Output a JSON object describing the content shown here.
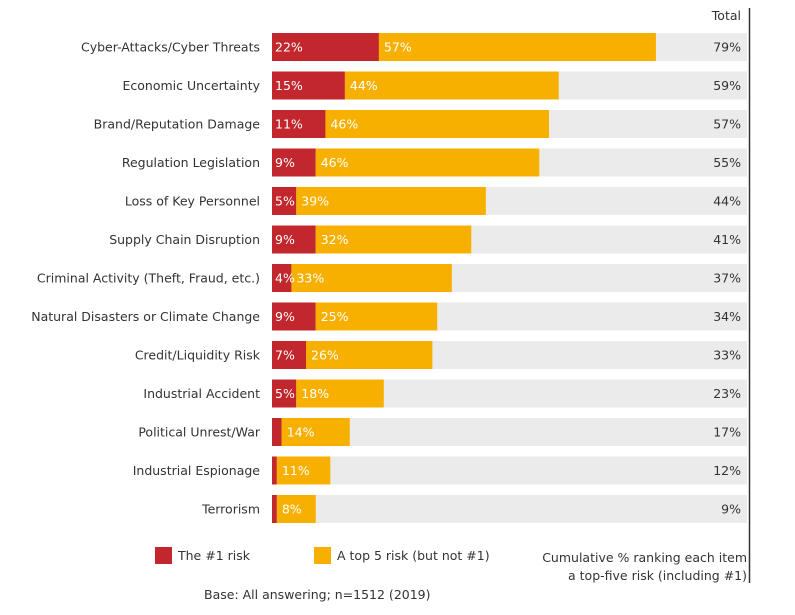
{
  "chart_data": {
    "type": "bar",
    "orientation": "horizontal",
    "stacked": true,
    "categories": [
      "Cyber-Attacks/Cyber Threats",
      "Economic Uncertainty",
      "Brand/Reputation Damage",
      "Regulation Legislation",
      "Loss of Key Personnel",
      "Supply Chain Disruption",
      "Criminal Activity (Theft, Fraud, etc.)",
      "Natural Disasters or Climate Change",
      "Credit/Liquidity Risk",
      "Industrial Accident",
      "Political Unrest/War",
      "Industrial Espionage",
      "Terrorism"
    ],
    "series": [
      {
        "name": "The #1 risk",
        "color": "#C1272D",
        "values": [
          22,
          15,
          11,
          9,
          5,
          9,
          4,
          9,
          7,
          5,
          2,
          1,
          1
        ],
        "labels": [
          "22%",
          "15%",
          "11%",
          "9%",
          "5%",
          "9%",
          "4%",
          "9%",
          "7%",
          "5%",
          "",
          "",
          ""
        ]
      },
      {
        "name": "A top 5 risk (but not  #1)",
        "color": "#F8B000",
        "values": [
          57,
          44,
          46,
          46,
          39,
          32,
          33,
          25,
          26,
          18,
          14,
          11,
          8
        ],
        "labels": [
          "57%",
          "44%",
          "46%",
          "46%",
          "39%",
          "32%",
          "33%",
          "25%",
          "26%",
          "18%",
          "14%",
          "11%",
          "8%"
        ]
      }
    ],
    "totals": [
      "79%",
      "59%",
      "57%",
      "55%",
      "44%",
      "41%",
      "37%",
      "34%",
      "33%",
      "23%",
      "17%",
      "12%",
      "9%"
    ],
    "total_header": "Total",
    "xlim": [
      0,
      100
    ],
    "background_track_color": "#EBEBEB",
    "label_color": "#ffffff",
    "grid": false,
    "legend_position": "bottom"
  },
  "legend": {
    "first_label": "The #1 risk",
    "second_label": "A top 5 risk (but not  #1)",
    "cumulative_line1": "Cumulative % ranking each item",
    "cumulative_line2": "a top-five risk (including #1)"
  },
  "footer": {
    "base_note": "Base: All answering; n=1512 (2019)"
  }
}
